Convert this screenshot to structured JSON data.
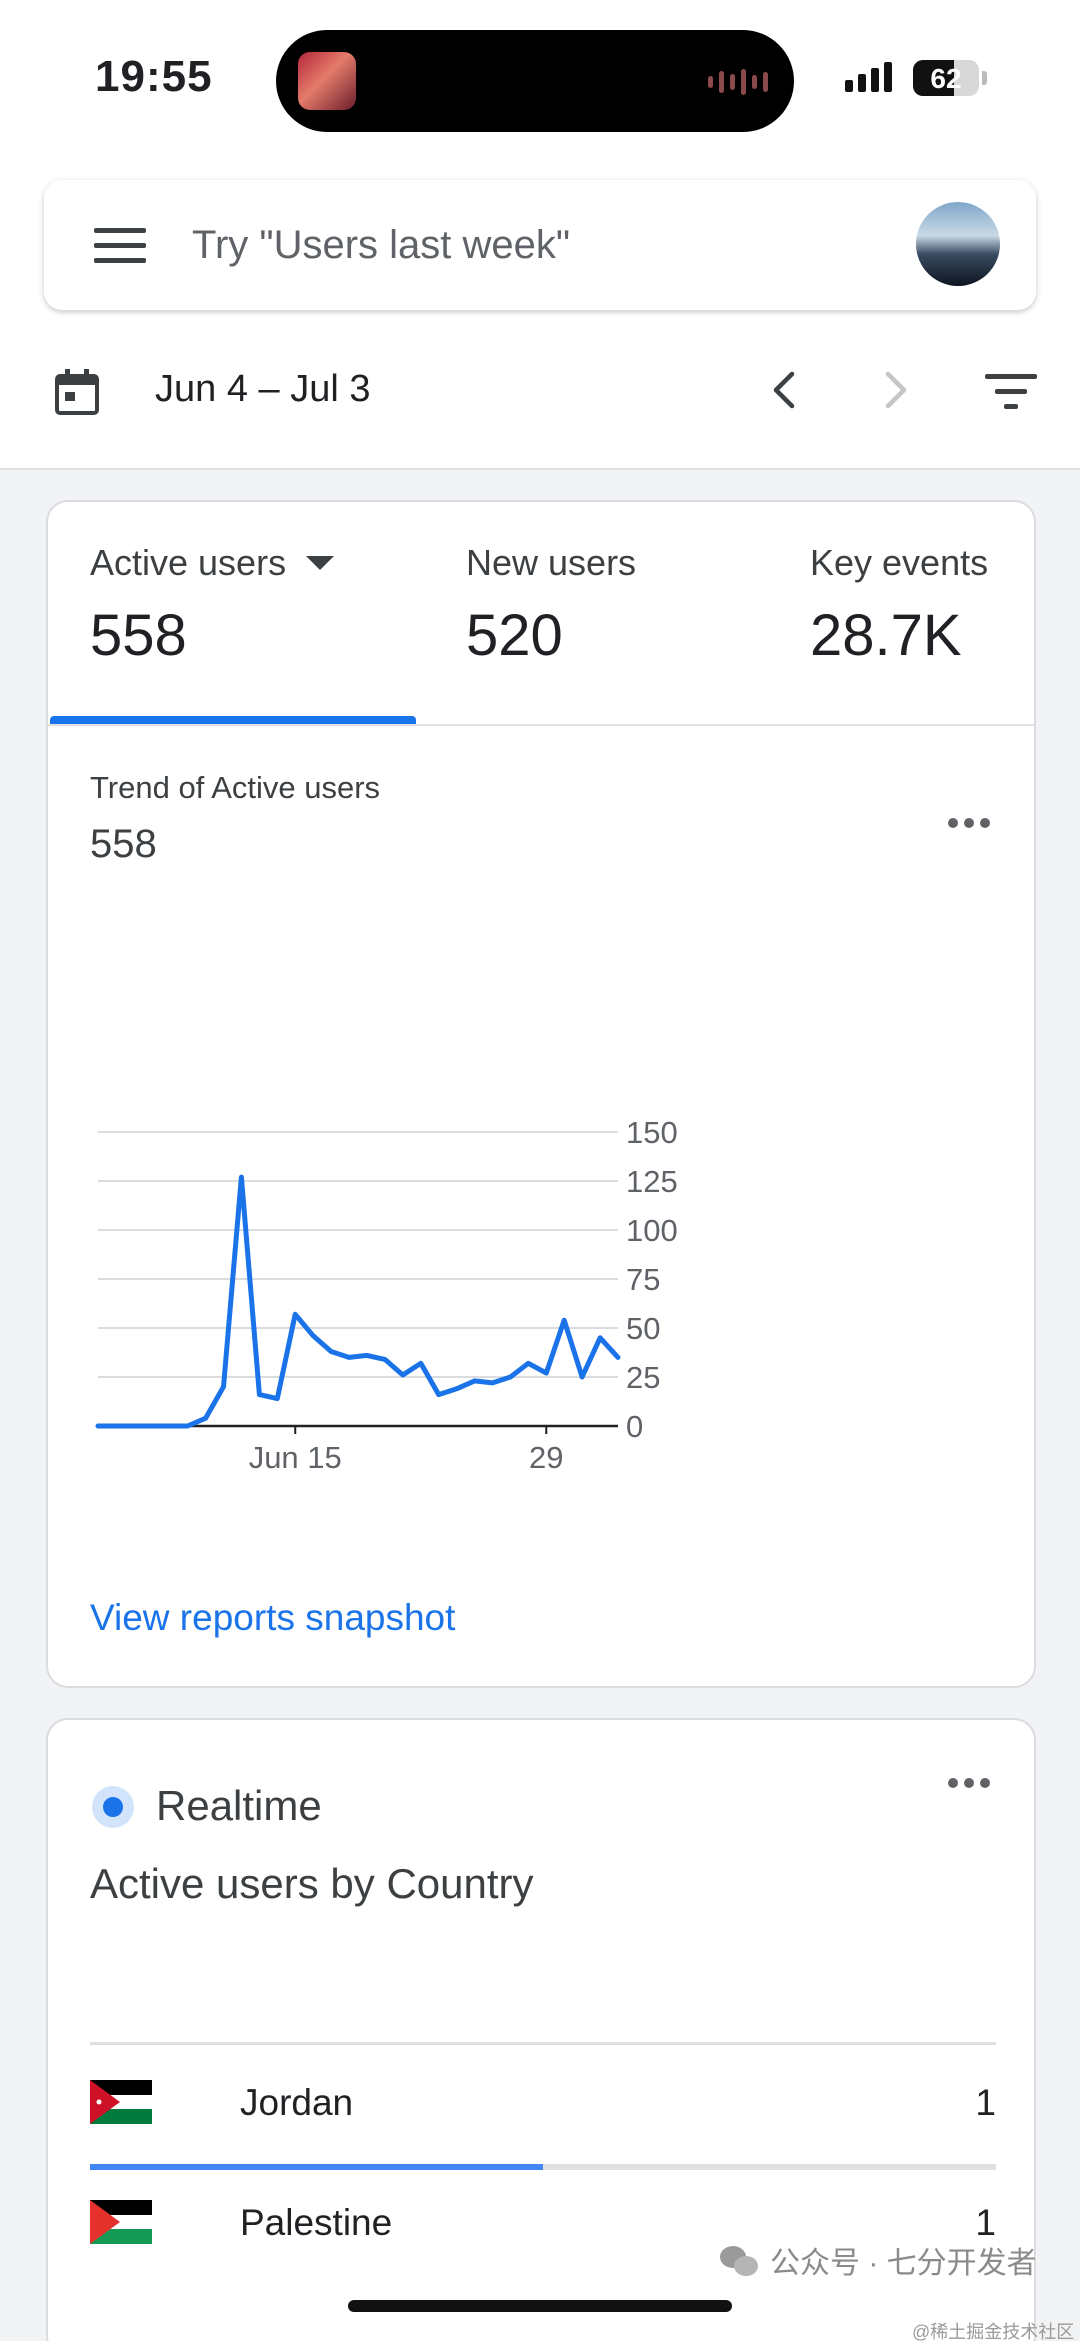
{
  "status_bar": {
    "time": "19:55",
    "battery": "62",
    "battery_level": 0.62
  },
  "search": {
    "placeholder": "Try \"Users last week\""
  },
  "date_range": {
    "label": "Jun 4 – Jul 3"
  },
  "metrics": [
    {
      "label": "Active users",
      "value": "558"
    },
    {
      "label": "New users",
      "value": "520"
    },
    {
      "label": "Key events",
      "value": "28.7K"
    }
  ],
  "trend": {
    "label": "Trend of Active users",
    "value": "558"
  },
  "chart_data": {
    "type": "line",
    "title": "Trend of Active users",
    "x": [
      "Jun 4",
      "Jun 5",
      "Jun 6",
      "Jun 7",
      "Jun 8",
      "Jun 9",
      "Jun 10",
      "Jun 11",
      "Jun 12",
      "Jun 13",
      "Jun 14",
      "Jun 15",
      "Jun 16",
      "Jun 17",
      "Jun 18",
      "Jun 19",
      "Jun 20",
      "Jun 21",
      "Jun 22",
      "Jun 23",
      "Jun 24",
      "Jun 25",
      "Jun 26",
      "Jun 27",
      "Jun 28",
      "Jun 29",
      "Jun 30",
      "Jul 1",
      "Jul 2",
      "Jul 3"
    ],
    "series": [
      {
        "values": [
          0,
          0,
          0,
          0,
          0,
          0,
          4,
          20,
          127,
          16,
          14,
          57,
          46,
          38,
          35,
          36,
          34,
          26,
          32,
          16,
          19,
          23,
          22,
          25,
          32,
          27,
          54,
          25,
          45,
          35
        ]
      }
    ],
    "x_tick_labels": [
      "Jun 15",
      "29"
    ],
    "y_tick_labels": [
      "0",
      "25",
      "50",
      "75",
      "100",
      "125",
      "150"
    ],
    "ylim": [
      0,
      150
    ],
    "grid": true,
    "color": "#1a73e8"
  },
  "links": {
    "snapshot": "View reports snapshot"
  },
  "realtime": {
    "label": "Realtime",
    "title": "Active users by Country",
    "countries": [
      {
        "name": "Jordan",
        "count": "1",
        "share": 0.5
      },
      {
        "name": "Palestine",
        "count": "1",
        "share": 0.5
      }
    ]
  },
  "watermark": {
    "text": "公众号 · 七分开发者",
    "subtext": "@稀土掘金技术社区"
  }
}
